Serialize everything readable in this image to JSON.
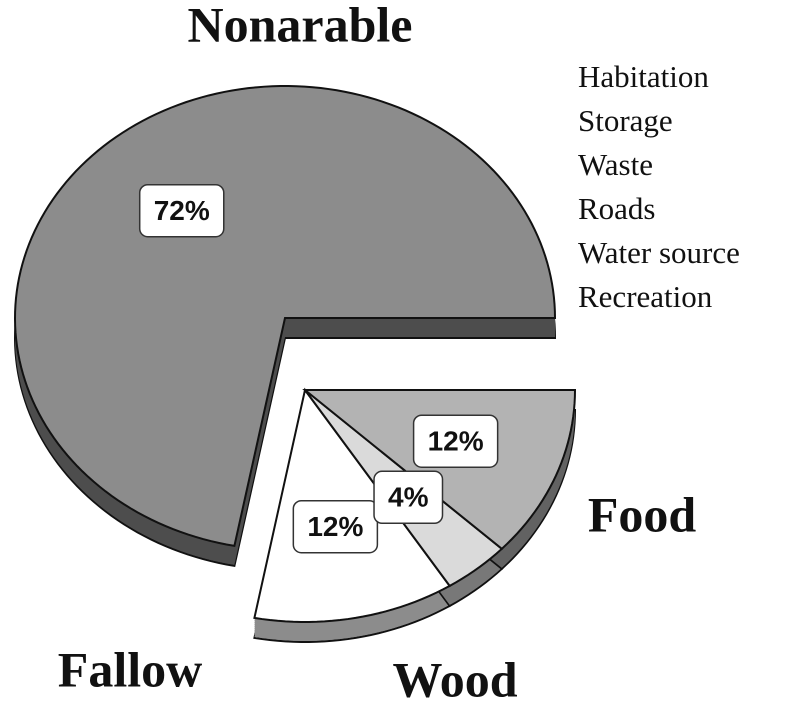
{
  "chart_data": {
    "type": "pie",
    "categories": [
      "Nonarable",
      "Fallow",
      "Wood",
      "Food"
    ],
    "values": [
      72,
      12,
      4,
      12
    ],
    "value_labels": [
      "72%",
      "12%",
      "4%",
      "12%"
    ],
    "colors": [
      "#8c8c8c",
      "#ffffff",
      "#dadada",
      "#b3b3b3"
    ],
    "annotations": [
      "Habitation",
      "Storage",
      "Waste",
      "Roads",
      "Water source",
      "Recreation"
    ]
  }
}
